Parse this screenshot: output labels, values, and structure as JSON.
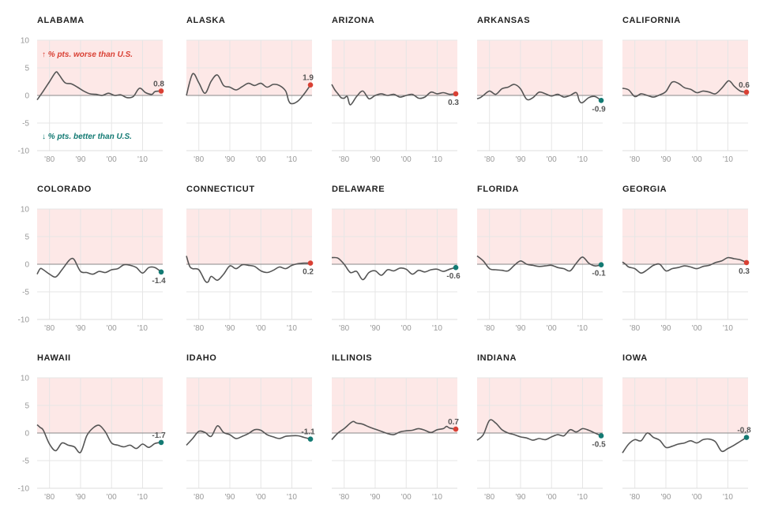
{
  "legend": {
    "worse": "↑ % pts. worse than U.S.",
    "better": "↓ % pts. better than U.S."
  },
  "colors": {
    "worse_fill": "#fde8e7",
    "worse_dot": "#d94034",
    "better_dot": "#137a73",
    "line": "#555555",
    "grid": "#e6e6e6",
    "tick": "#999999"
  },
  "chart_data": [
    {
      "type": "line",
      "title": "ALABAMA",
      "yticks": [
        10,
        5,
        0,
        -5,
        -10
      ],
      "xticks": [
        "'80",
        "'90",
        "'00",
        "'10"
      ],
      "ylim": [
        -10,
        10
      ],
      "xlim": [
        1976,
        2016.5
      ],
      "x": [
        1976,
        1978,
        1980,
        1982,
        1983,
        1985,
        1987,
        1989,
        1991,
        1993,
        1995,
        1997,
        1999,
        2001,
        2003,
        2005,
        2007,
        2009,
        2011,
        2013,
        2014,
        2016
      ],
      "y": [
        -0.8,
        0.8,
        2.5,
        4.2,
        3.8,
        2.3,
        2.1,
        1.5,
        0.8,
        0.3,
        0.2,
        0.0,
        0.4,
        0.0,
        0.1,
        -0.4,
        -0.2,
        1.3,
        0.5,
        0.2,
        0.7,
        0.8
      ],
      "last": 0.8
    },
    {
      "type": "line",
      "title": "ALASKA",
      "yticks": [],
      "xticks": [
        "'80",
        "'90",
        "'00",
        "'10"
      ],
      "ylim": [
        -10,
        10
      ],
      "xlim": [
        1976,
        2016.5
      ],
      "x": [
        1976,
        1978,
        1980,
        1982,
        1984,
        1986,
        1988,
        1990,
        1992,
        1994,
        1996,
        1998,
        2000,
        2002,
        2004,
        2006,
        2008,
        2009,
        2010,
        2012,
        2014,
        2016
      ],
      "y": [
        0.0,
        3.9,
        2.3,
        0.4,
        2.6,
        3.7,
        1.8,
        1.5,
        1.0,
        1.6,
        2.2,
        1.8,
        2.2,
        1.5,
        2.0,
        1.8,
        0.8,
        -1.0,
        -1.5,
        -1.0,
        0.3,
        1.9
      ],
      "last": 1.9
    },
    {
      "type": "line",
      "title": "ARIZONA",
      "yticks": [],
      "xticks": [
        "'80",
        "'90",
        "'00",
        "'10"
      ],
      "ylim": [
        -10,
        10
      ],
      "xlim": [
        1976,
        2016.5
      ],
      "x": [
        1976,
        1977,
        1978,
        1979,
        1980,
        1981,
        1982,
        1984,
        1986,
        1988,
        1990,
        1992,
        1994,
        1996,
        1998,
        2000,
        2002,
        2004,
        2006,
        2008,
        2010,
        2012,
        2014,
        2016
      ],
      "y": [
        2.0,
        1.0,
        0.3,
        -0.4,
        -0.5,
        -0.2,
        -1.7,
        -0.2,
        0.8,
        -0.6,
        0.0,
        0.3,
        0.0,
        0.2,
        -0.3,
        0.0,
        0.2,
        -0.5,
        -0.3,
        0.6,
        0.3,
        0.5,
        0.2,
        0.3
      ],
      "last": 0.3
    },
    {
      "type": "line",
      "title": "ARKANSAS",
      "yticks": [],
      "xticks": [
        "'80",
        "'90",
        "'00",
        "'10"
      ],
      "ylim": [
        -10,
        10
      ],
      "xlim": [
        1976,
        2016.5
      ],
      "x": [
        1976,
        1977,
        1978,
        1980,
        1982,
        1984,
        1986,
        1988,
        1990,
        1992,
        1994,
        1996,
        1998,
        2000,
        2002,
        2004,
        2006,
        2008,
        2009,
        2010,
        2012,
        2014,
        2016
      ],
      "y": [
        -0.6,
        -0.4,
        0.0,
        0.8,
        0.2,
        1.2,
        1.5,
        2.0,
        1.2,
        -0.7,
        -0.4,
        0.6,
        0.3,
        -0.1,
        0.2,
        -0.3,
        0.0,
        0.5,
        -1.0,
        -1.3,
        -0.4,
        -0.2,
        -0.9
      ],
      "last": -0.9
    },
    {
      "type": "line",
      "title": "CALIFORNIA",
      "yticks": [],
      "xticks": [
        "'80",
        "'90",
        "'00",
        "'10"
      ],
      "ylim": [
        -10,
        10
      ],
      "xlim": [
        1976,
        2016.5
      ],
      "x": [
        1976,
        1978,
        1980,
        1982,
        1984,
        1986,
        1988,
        1990,
        1992,
        1994,
        1996,
        1998,
        2000,
        2002,
        2004,
        2006,
        2008,
        2010,
        2011,
        2012,
        2014,
        2016
      ],
      "y": [
        1.3,
        1.0,
        -0.2,
        0.3,
        0.0,
        -0.3,
        0.1,
        0.7,
        2.4,
        2.2,
        1.4,
        1.1,
        0.5,
        0.8,
        0.6,
        0.3,
        1.3,
        2.6,
        2.4,
        1.7,
        0.8,
        0.6
      ],
      "last": 0.6
    },
    {
      "type": "line",
      "title": "COLORADO",
      "yticks": [
        10,
        5,
        0,
        -5,
        -10
      ],
      "xticks": [
        "'80",
        "'90",
        "'00",
        "'10"
      ],
      "ylim": [
        -10,
        10
      ],
      "xlim": [
        1976,
        2016.5
      ],
      "x": [
        1976,
        1977,
        1978,
        1980,
        1982,
        1984,
        1986,
        1987,
        1988,
        1990,
        1992,
        1994,
        1996,
        1998,
        2000,
        2002,
        2004,
        2006,
        2008,
        2010,
        2012,
        2014,
        2016
      ],
      "y": [
        -1.8,
        -0.8,
        -1.0,
        -1.8,
        -2.3,
        -1.0,
        0.5,
        1.0,
        0.8,
        -1.3,
        -1.5,
        -1.8,
        -1.3,
        -1.5,
        -1.0,
        -0.8,
        -0.1,
        -0.2,
        -0.6,
        -1.6,
        -0.6,
        -0.6,
        -1.4
      ],
      "last": -1.4
    },
    {
      "type": "line",
      "title": "CONNECTICUT",
      "yticks": [],
      "xticks": [
        "'80",
        "'90",
        "'00",
        "'10"
      ],
      "ylim": [
        -10,
        10
      ],
      "xlim": [
        1976,
        2016.5
      ],
      "x": [
        1976,
        1977,
        1978,
        1980,
        1982,
        1983,
        1984,
        1986,
        1988,
        1990,
        1992,
        1994,
        1996,
        1998,
        2000,
        2002,
        2004,
        2006,
        2008,
        2010,
        2012,
        2014,
        2016
      ],
      "y": [
        1.5,
        -0.3,
        -0.8,
        -1.0,
        -3.0,
        -3.2,
        -2.2,
        -2.9,
        -1.8,
        -0.3,
        -0.8,
        -0.1,
        -0.2,
        -0.4,
        -1.2,
        -1.5,
        -1.1,
        -0.5,
        -0.8,
        -0.2,
        0.1,
        0.2,
        0.2
      ],
      "last": 0.2
    },
    {
      "type": "line",
      "title": "DELAWARE",
      "yticks": [],
      "xticks": [
        "'80",
        "'90",
        "'00",
        "'10"
      ],
      "ylim": [
        -10,
        10
      ],
      "xlim": [
        1976,
        2016.5
      ],
      "x": [
        1976,
        1978,
        1980,
        1982,
        1984,
        1986,
        1988,
        1990,
        1992,
        1994,
        1996,
        1998,
        2000,
        2002,
        2004,
        2006,
        2008,
        2010,
        2012,
        2014,
        2016
      ],
      "y": [
        1.2,
        1.1,
        0.0,
        -1.5,
        -1.3,
        -2.8,
        -1.5,
        -1.2,
        -2.0,
        -1.0,
        -1.2,
        -0.7,
        -0.9,
        -1.8,
        -1.1,
        -1.4,
        -1.0,
        -0.9,
        -1.3,
        -0.9,
        -0.6
      ],
      "last": -0.6
    },
    {
      "type": "line",
      "title": "FLORIDA",
      "yticks": [],
      "xticks": [
        "'80",
        "'90",
        "'00",
        "'10"
      ],
      "ylim": [
        -10,
        10
      ],
      "xlim": [
        1976,
        2016.5
      ],
      "x": [
        1976,
        1978,
        1980,
        1982,
        1984,
        1986,
        1988,
        1990,
        1992,
        1994,
        1996,
        1998,
        2000,
        2002,
        2004,
        2006,
        2008,
        2010,
        2012,
        2014,
        2016
      ],
      "y": [
        1.5,
        0.6,
        -0.8,
        -1.0,
        -1.1,
        -1.2,
        -0.2,
        0.6,
        0.0,
        -0.2,
        -0.4,
        -0.3,
        -0.2,
        -0.6,
        -0.8,
        -1.2,
        0.2,
        1.3,
        0.2,
        -0.3,
        -0.1
      ],
      "last": -0.1
    },
    {
      "type": "line",
      "title": "GEORGIA",
      "yticks": [],
      "xticks": [
        "'80",
        "'90",
        "'00",
        "'10"
      ],
      "ylim": [
        -10,
        10
      ],
      "xlim": [
        1976,
        2016.5
      ],
      "x": [
        1976,
        1977,
        1978,
        1980,
        1982,
        1984,
        1986,
        1988,
        1990,
        1992,
        1994,
        1996,
        1998,
        2000,
        2002,
        2004,
        2006,
        2008,
        2010,
        2012,
        2014,
        2016
      ],
      "y": [
        0.4,
        0.0,
        -0.5,
        -0.8,
        -1.6,
        -1.0,
        -0.2,
        0.0,
        -1.2,
        -0.8,
        -0.6,
        -0.3,
        -0.5,
        -0.8,
        -0.4,
        -0.2,
        0.3,
        0.6,
        1.2,
        1.0,
        0.8,
        0.3
      ],
      "last": 0.3
    },
    {
      "type": "line",
      "title": "HAWAII",
      "yticks": [
        10,
        5,
        0,
        -5,
        -10
      ],
      "xticks": [
        "'80",
        "'90",
        "'00",
        "'10"
      ],
      "ylim": [
        -10,
        10
      ],
      "xlim": [
        1976,
        2016.5
      ],
      "x": [
        1976,
        1977,
        1978,
        1980,
        1982,
        1984,
        1986,
        1988,
        1990,
        1992,
        1994,
        1996,
        1998,
        2000,
        2002,
        2004,
        2006,
        2008,
        2010,
        2012,
        2014,
        2016
      ],
      "y": [
        1.5,
        1.0,
        0.5,
        -2.0,
        -3.2,
        -1.8,
        -2.2,
        -2.5,
        -3.5,
        -0.5,
        0.9,
        1.4,
        0.2,
        -1.8,
        -2.2,
        -2.5,
        -2.2,
        -2.8,
        -2.0,
        -2.6,
        -1.9,
        -1.7
      ],
      "last": -1.7
    },
    {
      "type": "line",
      "title": "IDAHO",
      "yticks": [],
      "xticks": [
        "'80",
        "'90",
        "'00",
        "'10"
      ],
      "ylim": [
        -10,
        10
      ],
      "xlim": [
        1976,
        2016.5
      ],
      "x": [
        1976,
        1978,
        1980,
        1982,
        1984,
        1986,
        1988,
        1990,
        1992,
        1994,
        1996,
        1998,
        2000,
        2002,
        2004,
        2006,
        2008,
        2010,
        2012,
        2014,
        2016
      ],
      "y": [
        -2.2,
        -1.0,
        0.3,
        0.1,
        -0.6,
        1.3,
        0.1,
        -0.3,
        -1.0,
        -0.6,
        -0.1,
        0.6,
        0.5,
        -0.3,
        -0.7,
        -1.0,
        -0.6,
        -0.5,
        -0.5,
        -0.8,
        -1.1
      ],
      "last": -1.1
    },
    {
      "type": "line",
      "title": "ILLINOIS",
      "yticks": [],
      "xticks": [
        "'80",
        "'90",
        "'00",
        "'10"
      ],
      "ylim": [
        -10,
        10
      ],
      "xlim": [
        1976,
        2016.5
      ],
      "x": [
        1976,
        1978,
        1980,
        1982,
        1983,
        1984,
        1986,
        1988,
        1990,
        1992,
        1994,
        1996,
        1998,
        2000,
        2002,
        2004,
        2006,
        2008,
        2010,
        2012,
        2013,
        2014,
        2016
      ],
      "y": [
        -1.2,
        0.0,
        0.8,
        1.8,
        2.1,
        1.8,
        1.6,
        1.1,
        0.7,
        0.3,
        -0.1,
        -0.3,
        0.2,
        0.4,
        0.5,
        0.8,
        0.5,
        0.1,
        0.6,
        0.8,
        1.2,
        0.9,
        0.7
      ],
      "last": 0.7
    },
    {
      "type": "line",
      "title": "INDIANA",
      "yticks": [],
      "xticks": [
        "'80",
        "'90",
        "'00",
        "'10"
      ],
      "ylim": [
        -10,
        10
      ],
      "xlim": [
        1976,
        2016.5
      ],
      "x": [
        1976,
        1978,
        1980,
        1982,
        1984,
        1986,
        1988,
        1990,
        1992,
        1994,
        1996,
        1998,
        2000,
        2002,
        2004,
        2006,
        2008,
        2010,
        2012,
        2014,
        2016
      ],
      "y": [
        -1.3,
        -0.3,
        2.3,
        1.8,
        0.6,
        0.0,
        -0.3,
        -0.7,
        -0.9,
        -1.3,
        -1.0,
        -1.2,
        -0.7,
        -0.3,
        -0.5,
        0.6,
        0.2,
        0.8,
        0.5,
        0.0,
        -0.5
      ],
      "last": -0.5
    },
    {
      "type": "line",
      "title": "IOWA",
      "yticks": [],
      "xticks": [
        "'80",
        "'90",
        "'00",
        "'10"
      ],
      "ylim": [
        -10,
        10
      ],
      "xlim": [
        1976,
        2016.5
      ],
      "x": [
        1976,
        1978,
        1980,
        1982,
        1984,
        1986,
        1988,
        1990,
        1992,
        1994,
        1996,
        1998,
        2000,
        2002,
        2004,
        2006,
        2008,
        2010,
        2012,
        2014,
        2016
      ],
      "y": [
        -3.6,
        -2.0,
        -1.2,
        -1.4,
        0.0,
        -0.8,
        -1.3,
        -2.6,
        -2.4,
        -2.0,
        -1.8,
        -1.4,
        -1.8,
        -1.2,
        -1.1,
        -1.6,
        -3.3,
        -2.8,
        -2.2,
        -1.5,
        -0.8
      ],
      "last": -0.8
    }
  ]
}
